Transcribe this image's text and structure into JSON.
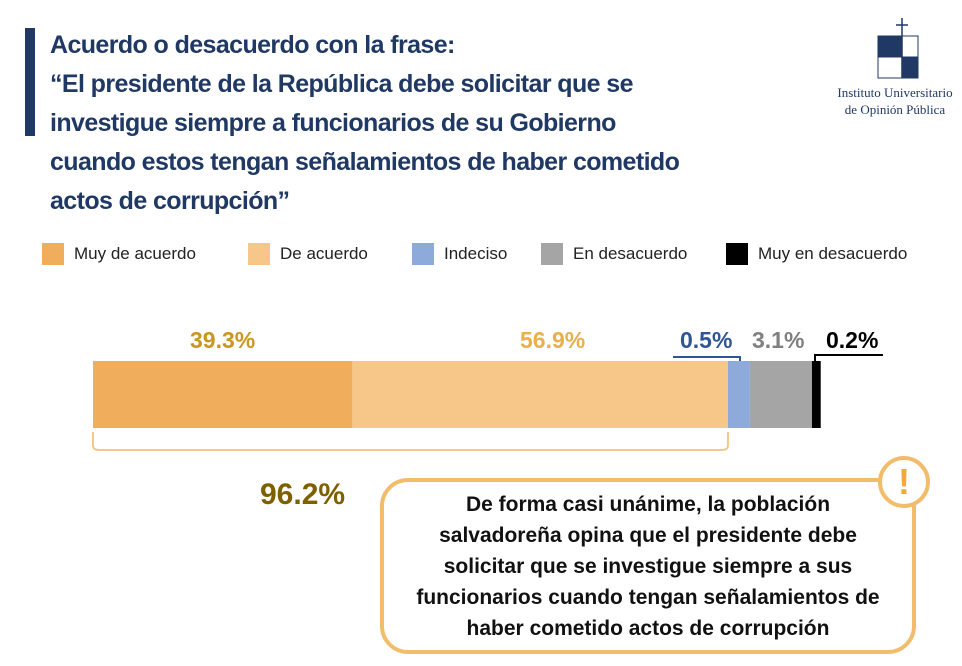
{
  "title": [
    "Acuerdo o desacuerdo con la frase:",
    "“El presidente de la República debe solicitar que se",
    "investigue siempre a funcionarios de su Gobierno",
    "cuando estos tengan señalamientos de haber cometido",
    "actos de corrupción”"
  ],
  "logo": {
    "line1": "Instituto Universitario",
    "line2": "de Opinión Pública",
    "mark": "UCA"
  },
  "chart_data": {
    "type": "bar",
    "stacked": true,
    "orientation": "horizontal",
    "categories": [
      "Muy de acuerdo",
      "De acuerdo",
      "Indeciso",
      "En desacuerdo",
      "Muy en desacuerdo"
    ],
    "values": [
      39.3,
      56.9,
      0.5,
      3.1,
      0.2
    ],
    "labels": [
      "39.3%",
      "56.9%",
      "0.5%",
      "3.1%",
      "0.2%"
    ],
    "colors": [
      "#f0ad5b",
      "#f6c788",
      "#8eaadb",
      "#a5a5a5",
      "#000000"
    ],
    "label_colors": [
      "#c9961e",
      "#e8b04c",
      "#2f5597",
      "#808080",
      "#000000"
    ],
    "legend": "top",
    "grouped_total": {
      "label": "96.2%",
      "value": 96.2,
      "color": "#7f6000"
    }
  },
  "callout": "De forma casi unánime, la población salvadoreña opina que el presidente debe solicitar que se investigue siempre a sus funcionarios cuando tengan señalamientos de haber cometido actos de corrupción",
  "callout_icon": "exclamation-icon"
}
